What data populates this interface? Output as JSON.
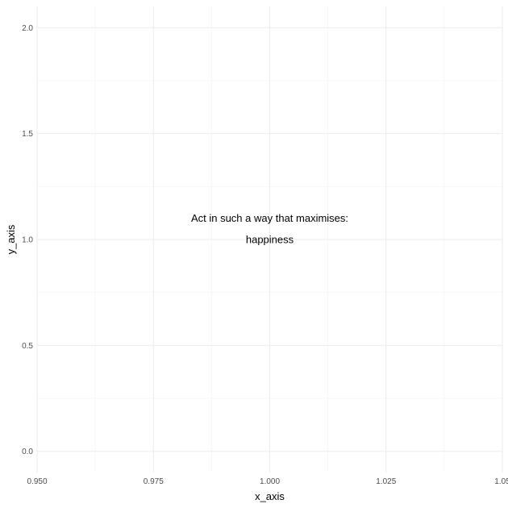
{
  "chart_data": {
    "type": "scatter",
    "title": "",
    "xlabel": "x_axis",
    "ylabel": "y_axis",
    "xlim": [
      0.95,
      1.05
    ],
    "ylim": [
      -0.1,
      2.1
    ],
    "x_ticks": [
      {
        "value": 0.95,
        "label": "0.950"
      },
      {
        "value": 0.975,
        "label": "0.975"
      },
      {
        "value": 1.0,
        "label": "1.000"
      },
      {
        "value": 1.025,
        "label": "1.025"
      },
      {
        "value": 1.05,
        "label": "1.05"
      }
    ],
    "y_ticks": [
      {
        "value": 0.0,
        "label": "0.0"
      },
      {
        "value": 0.5,
        "label": "0.5"
      },
      {
        "value": 1.0,
        "label": "1.0"
      },
      {
        "value": 1.5,
        "label": "1.5"
      },
      {
        "value": 2.0,
        "label": "2.0"
      }
    ],
    "grid": true,
    "legend": "none",
    "annotations": [
      {
        "x": 1.0,
        "y": 1.1,
        "text": "Act in such a way that maximises:"
      },
      {
        "x": 1.0,
        "y": 1.0,
        "text": "happiness"
      }
    ],
    "colors": {
      "grid": "#ebebeb",
      "text": "#000000",
      "tick_text": "#4d4d4d"
    }
  }
}
